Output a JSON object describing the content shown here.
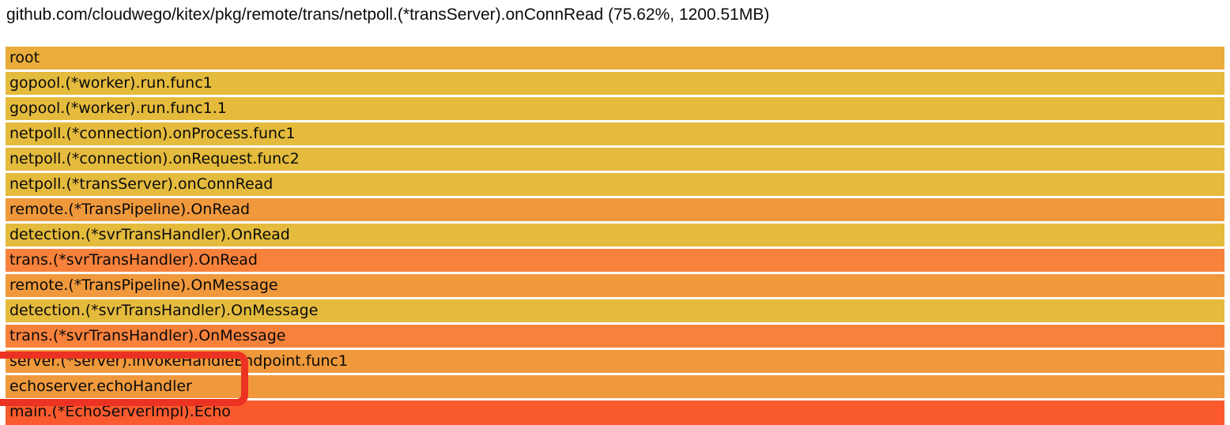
{
  "header": {
    "title": "github.com/cloudwego/kitex/pkg/remote/trans/netpoll.(*transServer).onConnRead (75.62%, 1200.51MB)"
  },
  "colors": {
    "background": "#ffffff",
    "title_text": "#0c0c0c",
    "frame_text": "#0a0a0a",
    "gold": "#e5bb3d",
    "root_gold": "#eaad3b",
    "orange": "#f0993c",
    "deep_orange": "#f8823c",
    "red_orange": "#fb5a2e",
    "annotation_red": "#eb3223"
  },
  "chart_data": {
    "type": "flamegraph",
    "title": "github.com/cloudwego/kitex/pkg/remote/trans/netpoll.(*transServer).onConnRead (75.62%, 1200.51MB)",
    "selected_frame": {
      "function": "github.com/cloudwego/kitex/pkg/remote/trans/netpoll.(*transServer).onConnRead",
      "percent": "75.62%",
      "value": "1200.51MB"
    },
    "orientation": "top-down (icicle), every frame spans full width (100%)",
    "frames": [
      {
        "label": "root",
        "depth": 0,
        "width_pct": 100,
        "color": "#eaad3b"
      },
      {
        "label": "gopool.(*worker).run.func1",
        "depth": 1,
        "width_pct": 100,
        "color": "#e5bb3d"
      },
      {
        "label": "gopool.(*worker).run.func1.1",
        "depth": 2,
        "width_pct": 100,
        "color": "#e5bb3d"
      },
      {
        "label": "netpoll.(*connection).onProcess.func1",
        "depth": 3,
        "width_pct": 100,
        "color": "#e5bb3d"
      },
      {
        "label": "netpoll.(*connection).onRequest.func2",
        "depth": 4,
        "width_pct": 100,
        "color": "#e5bb3d"
      },
      {
        "label": "netpoll.(*transServer).onConnRead",
        "depth": 5,
        "width_pct": 100,
        "color": "#e5bb3d"
      },
      {
        "label": "remote.(*TransPipeline).OnRead",
        "depth": 6,
        "width_pct": 100,
        "color": "#f0993c"
      },
      {
        "label": "detection.(*svrTransHandler).OnRead",
        "depth": 7,
        "width_pct": 100,
        "color": "#e5bb3d"
      },
      {
        "label": "trans.(*svrTransHandler).OnRead",
        "depth": 8,
        "width_pct": 100,
        "color": "#f8823c"
      },
      {
        "label": "remote.(*TransPipeline).OnMessage",
        "depth": 9,
        "width_pct": 100,
        "color": "#f0993c"
      },
      {
        "label": "detection.(*svrTransHandler).OnMessage",
        "depth": 10,
        "width_pct": 100,
        "color": "#e5bb3d"
      },
      {
        "label": "trans.(*svrTransHandler).OnMessage",
        "depth": 11,
        "width_pct": 100,
        "color": "#f8823c"
      },
      {
        "label": "server.(*server).invokeHandleEndpoint.func1",
        "depth": 12,
        "width_pct": 100,
        "color": "#f0993c"
      },
      {
        "label": "echoserver.echoHandler",
        "depth": 13,
        "width_pct": 100,
        "color": "#f0993c"
      },
      {
        "label": "main.(*EchoServerImpl).Echo",
        "depth": 14,
        "width_pct": 100,
        "color": "#fb5a2e"
      }
    ],
    "annotation": {
      "shape": "red rounded rectangle, left edge cut off by screen edge",
      "highlights": [
        "server.(*server).invokeHandleEndpoint.func1",
        "echoserver.echoHandler"
      ]
    }
  }
}
